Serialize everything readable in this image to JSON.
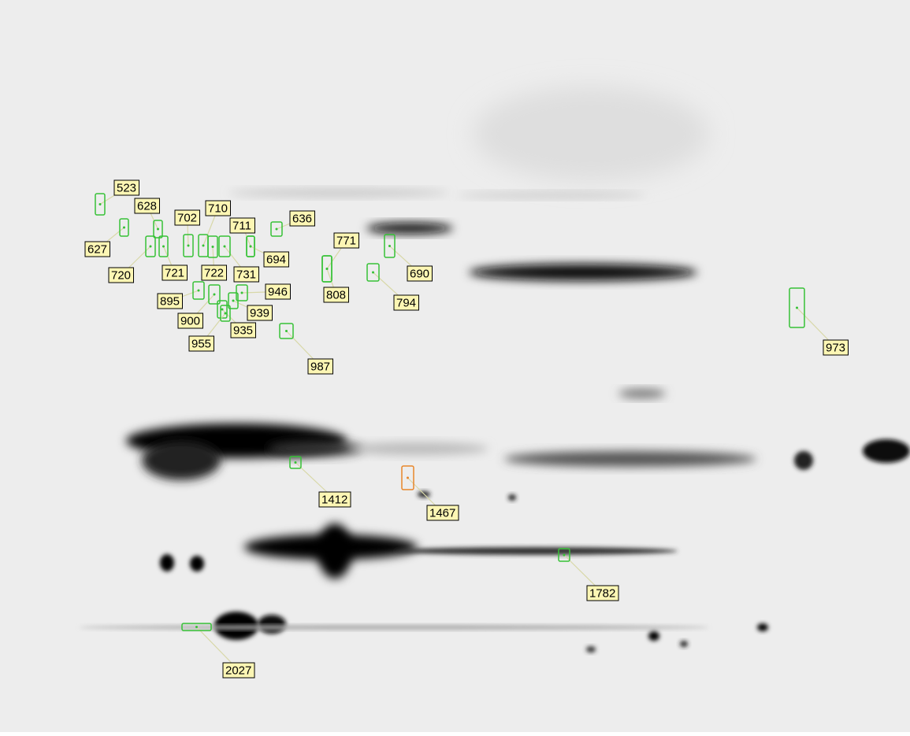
{
  "spots": [
    {
      "label": "523",
      "color": "#36c236"
    },
    {
      "label": "628",
      "color": "#36c236"
    },
    {
      "label": "710",
      "color": "#36c236"
    },
    {
      "label": "702",
      "color": "#36c236"
    },
    {
      "label": "636",
      "color": "#36c236"
    },
    {
      "label": "711",
      "color": "#36c236"
    },
    {
      "label": "627",
      "color": "#36c236"
    },
    {
      "label": "771",
      "color": "#36c236"
    },
    {
      "label": "690",
      "color": "#36c236"
    },
    {
      "label": "694",
      "color": "#36c236"
    },
    {
      "label": "720",
      "color": "#36c236"
    },
    {
      "label": "721",
      "color": "#36c236"
    },
    {
      "label": "722",
      "color": "#36c236"
    },
    {
      "label": "731",
      "color": "#36c236"
    },
    {
      "label": "808",
      "color": "#36c236"
    },
    {
      "label": "794",
      "color": "#36c236"
    },
    {
      "label": "946",
      "color": "#36c236"
    },
    {
      "label": "895",
      "color": "#36c236"
    },
    {
      "label": "939",
      "color": "#36c236"
    },
    {
      "label": "900",
      "color": "#36c236"
    },
    {
      "label": "935",
      "color": "#36c236"
    },
    {
      "label": "955",
      "color": "#36c236"
    },
    {
      "label": "987",
      "color": "#36c236"
    },
    {
      "label": "973",
      "color": "#36c236"
    },
    {
      "label": "1412",
      "color": "#36c236"
    },
    {
      "label": "1467",
      "color": "#e8862a"
    },
    {
      "label": "1782",
      "color": "#36c236"
    },
    {
      "label": "2027",
      "color": "#36c236"
    }
  ]
}
